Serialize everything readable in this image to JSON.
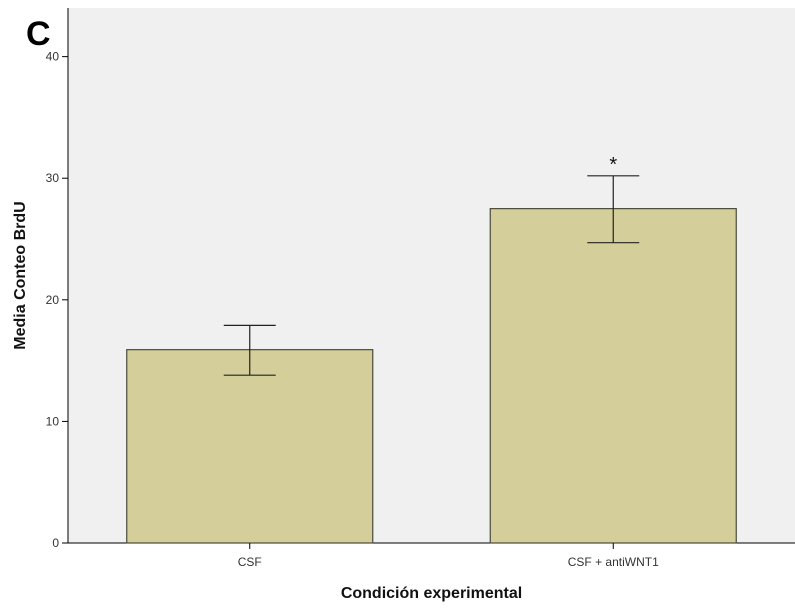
{
  "panel_label": "C",
  "chart_data": {
    "type": "bar",
    "categories": [
      "CSF",
      "CSF + antiWNT1"
    ],
    "values": [
      15.9,
      27.5
    ],
    "error_bars": [
      [
        13.8,
        17.9
      ],
      [
        24.7,
        30.2
      ]
    ],
    "annotations": [
      "",
      "*"
    ],
    "xlabel": "Condición experimental",
    "ylabel": "Media Conteo BrdU",
    "ylim": [
      0,
      44
    ],
    "yticks": [
      0,
      10,
      20,
      30,
      40
    ],
    "grid": false,
    "colors": {
      "bar_fill": "#d4cf9a",
      "bar_stroke": "#4a4a3a",
      "plot_bg": "#f0f0f0",
      "error_bar": "#222222"
    }
  }
}
